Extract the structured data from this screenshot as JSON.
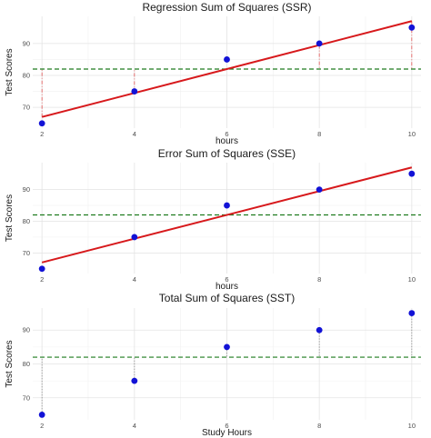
{
  "chart_data": [
    {
      "type": "scatter",
      "title": "Regression Sum of Squares (SSR)",
      "xlabel": "hours",
      "ylabel": "Test Scores",
      "x": [
        2,
        4,
        6,
        8,
        10
      ],
      "y": [
        65,
        75,
        85,
        90,
        95
      ],
      "regression_line": {
        "x": [
          2,
          10
        ],
        "y": [
          67,
          97
        ]
      },
      "mean_line": 82,
      "segments": "fitted-to-mean",
      "segment_style": "red-dashdot",
      "x_ticks": [
        2,
        4,
        6,
        8,
        10
      ],
      "y_ticks": [
        70,
        80,
        90
      ],
      "xlim": [
        1.8,
        10.2
      ],
      "ylim": [
        63.5,
        98.5
      ],
      "grid": true,
      "legend": "none"
    },
    {
      "type": "scatter",
      "title": "Error Sum of Squares (SSE)",
      "xlabel": "hours",
      "ylabel": "Test Scores",
      "x": [
        2,
        4,
        6,
        8,
        10
      ],
      "y": [
        65,
        75,
        85,
        90,
        95
      ],
      "regression_line": {
        "x": [
          2,
          10
        ],
        "y": [
          67,
          97
        ]
      },
      "mean_line": 82,
      "segments": "none",
      "x_ticks": [
        2,
        4,
        6,
        8,
        10
      ],
      "y_ticks": [
        70,
        80,
        90
      ],
      "xlim": [
        1.8,
        10.2
      ],
      "ylim": [
        63.5,
        98.5
      ],
      "grid": true,
      "legend": "none"
    },
    {
      "type": "scatter",
      "title": "Total Sum of Squares (SST)",
      "xlabel": "Study Hours",
      "ylabel": "Test Scores",
      "x": [
        2,
        4,
        6,
        8,
        10
      ],
      "y": [
        65,
        75,
        85,
        90,
        95
      ],
      "mean_line": 82,
      "segments": "observed-to-mean",
      "segment_style": "gray-dotted",
      "x_ticks": [
        2,
        4,
        6,
        8,
        10
      ],
      "y_ticks": [
        70,
        80,
        90
      ],
      "xlim": [
        1.8,
        10.2
      ],
      "ylim": [
        63.5,
        96.5
      ],
      "grid": true,
      "legend": "none"
    }
  ]
}
